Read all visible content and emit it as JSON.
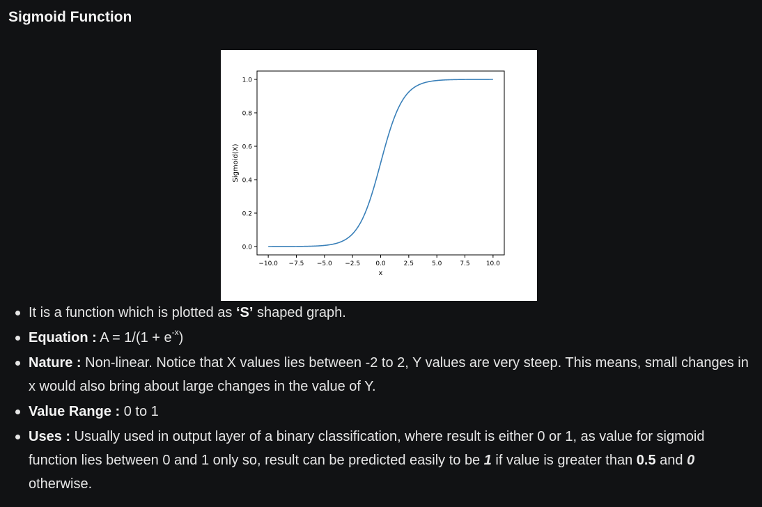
{
  "page": {
    "title": "Sigmoid Function"
  },
  "chart_data": {
    "type": "line",
    "function": "sigmoid",
    "x_range": [
      -10,
      10
    ],
    "series": [
      {
        "x": [
          -10,
          -9,
          -8,
          -7,
          -6,
          -5,
          -4,
          -3,
          -2.5,
          -2,
          -1.5,
          -1,
          -0.5,
          0,
          0.5,
          1,
          1.5,
          2,
          2.5,
          3,
          4,
          5,
          6,
          7,
          8,
          9,
          10
        ],
        "y": [
          4.54e-05,
          0.000123,
          0.000335,
          0.000911,
          0.00247,
          0.00669,
          0.018,
          0.0474,
          0.0759,
          0.1192,
          0.1824,
          0.2689,
          0.3775,
          0.5,
          0.6225,
          0.7311,
          0.8176,
          0.8808,
          0.9241,
          0.9526,
          0.982,
          0.9933,
          0.9975,
          0.9991,
          0.9997,
          0.9999,
          0.99995
        ]
      }
    ],
    "xlabel": "x",
    "ylabel": "Sigmoid(X)",
    "xlim": [
      -11,
      11
    ],
    "ylim": [
      -0.05,
      1.05
    ],
    "x_ticks": [
      -10.0,
      -7.5,
      -5.0,
      -2.5,
      0.0,
      2.5,
      5.0,
      7.5,
      10.0
    ],
    "x_tick_labels": [
      "−10.0",
      "−7.5",
      "−5.0",
      "−2.5",
      "0.0",
      "2.5",
      "5.0",
      "7.5",
      "10.0"
    ],
    "y_ticks": [
      0.0,
      0.2,
      0.4,
      0.6,
      0.8,
      1.0
    ],
    "y_tick_labels": [
      "0.0",
      "0.2",
      "0.4",
      "0.6",
      "0.8",
      "1.0"
    ],
    "grid": false,
    "line_color": "#3a80b9"
  },
  "bullets": {
    "b1": {
      "pre": "It is a function which is plotted as ",
      "bold": "‘S’",
      "post": " shaped graph."
    },
    "b2": {
      "label": "Equation :",
      "text": " A = 1/(1 + e",
      "sup": "-x",
      "close": ")"
    },
    "b3": {
      "label": "Nature :",
      "text": " Non-linear. Notice that X values lies between -2 to 2, Y values are very steep. This means, small changes in x would also bring about large changes in the value of Y."
    },
    "b4": {
      "label": "Value Range :",
      "text": " 0 to 1"
    },
    "b5": {
      "label": "Uses :",
      "text1": " Usually used in output layer of a binary classification, where result is either 0 or 1, as value for sigmoid function lies between 0 and 1 only so, result can be predicted easily to be ",
      "one": "1",
      "text2": " if value is greater than ",
      "half": "0.5",
      "text3": " and ",
      "zero": "0",
      "text4": " otherwise."
    }
  }
}
